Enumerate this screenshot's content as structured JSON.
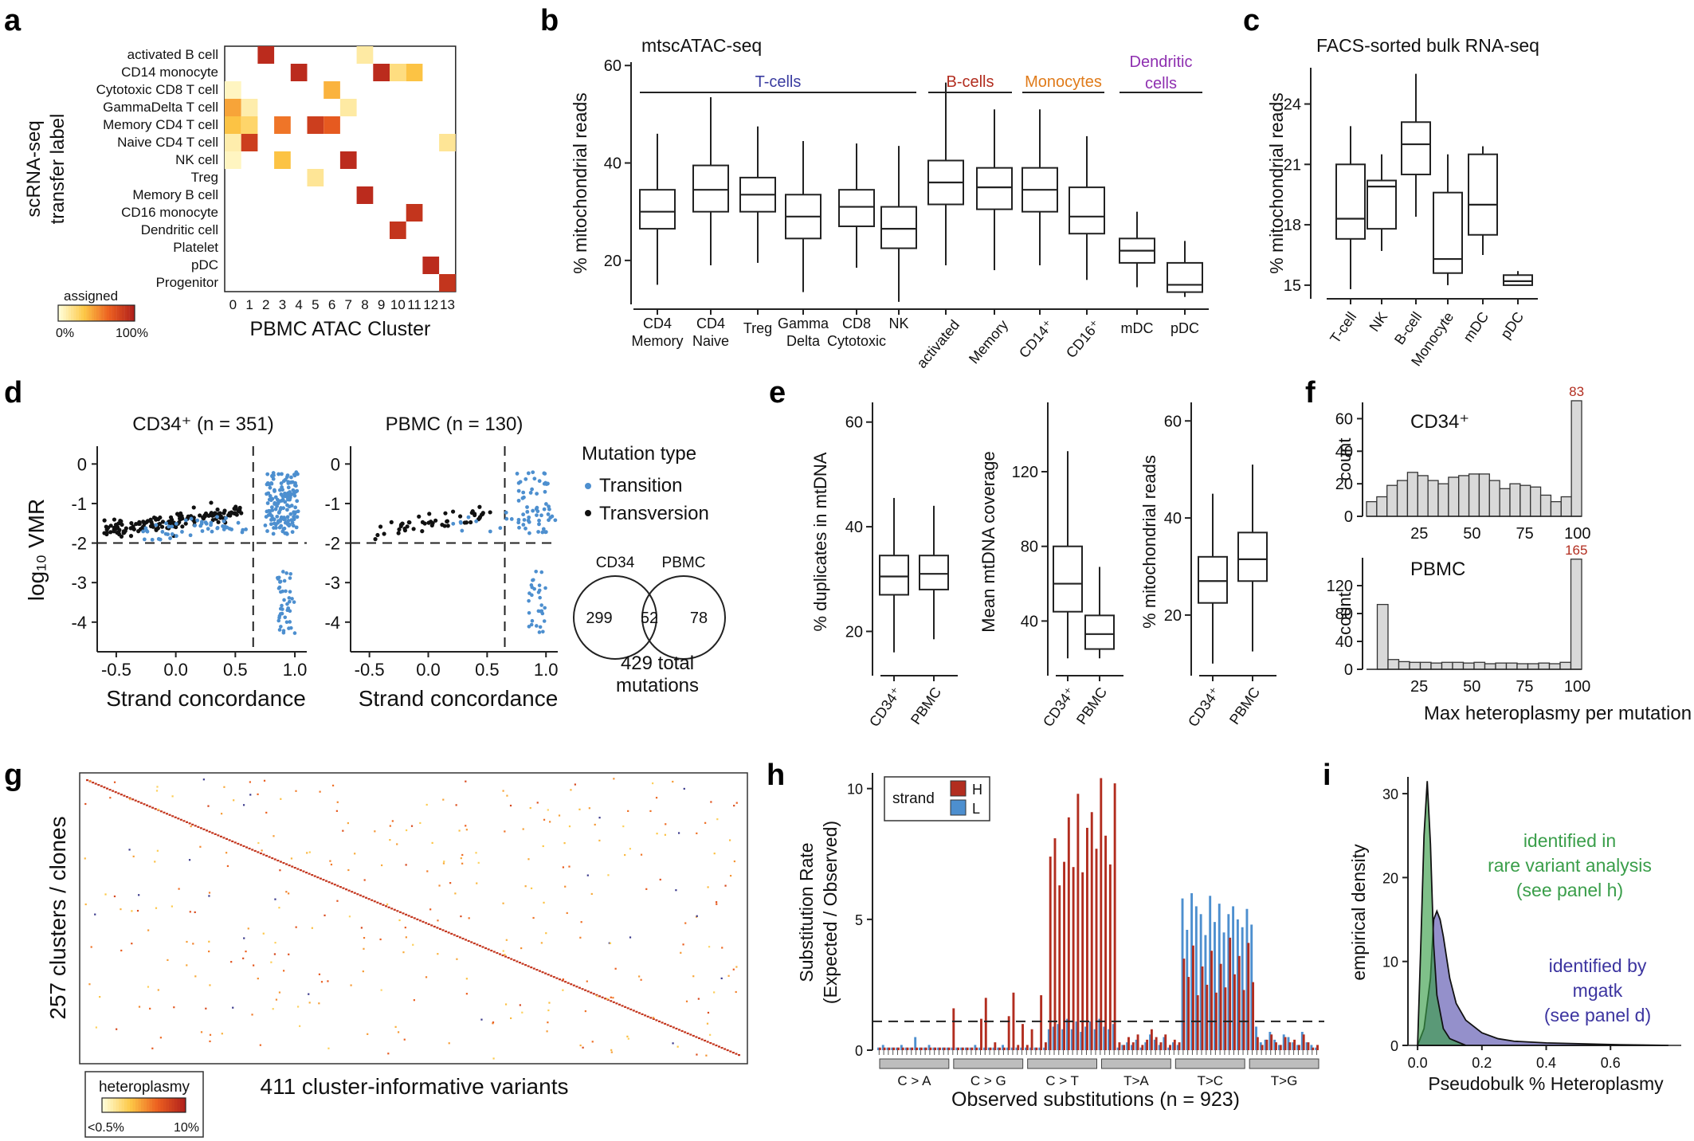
{
  "colors": {
    "red": "#b22d1f",
    "blue": "#4d8fcf",
    "green": "#3a9e4a",
    "purple": "#3d35a0",
    "orange": "#e07b1a",
    "magenta": "#8e2fb0",
    "navy": "#3a3ca0",
    "box_gray": "#d9d9d9"
  },
  "panels": {
    "a": "a",
    "b": "b",
    "c": "c",
    "d": "d",
    "e": "e",
    "f": "f",
    "g": "g",
    "h": "h",
    "i": "i"
  },
  "chart_data": [
    {
      "id": "a",
      "type": "heatmap",
      "ylabel": "scRNA-seq\ntransfer label",
      "xlabel": "PBMC ATAC Cluster",
      "rows": [
        "activated B cell",
        "CD14 monocyte",
        "Cytotoxic CD8 T cell",
        "GammaDelta T cell",
        "Memory CD4 T cell",
        "Naive CD4 T cell",
        "NK cell",
        "Treg",
        "Memory B cell",
        "CD16 monocyte",
        "Dendritic cell",
        "Platelet",
        "pDC",
        "Progenitor"
      ],
      "columns": [
        "0",
        "1",
        "2",
        "3",
        "4",
        "5",
        "6",
        "7",
        "8",
        "9",
        "10",
        "11",
        "12",
        "13"
      ],
      "cells": [
        [
          0,
          2,
          0.95
        ],
        [
          0,
          8,
          0.12
        ],
        [
          1,
          4,
          0.95
        ],
        [
          1,
          9,
          0.95
        ],
        [
          1,
          10,
          0.2
        ],
        [
          1,
          11,
          0.35
        ],
        [
          2,
          0,
          0.05
        ],
        [
          2,
          6,
          0.4
        ],
        [
          3,
          0,
          0.45
        ],
        [
          3,
          1,
          0.1
        ],
        [
          3,
          7,
          0.12
        ],
        [
          4,
          0,
          0.35
        ],
        [
          4,
          1,
          0.25
        ],
        [
          4,
          3,
          0.6
        ],
        [
          4,
          5,
          0.85
        ],
        [
          4,
          6,
          0.7
        ],
        [
          5,
          0,
          0.1
        ],
        [
          5,
          1,
          0.85
        ],
        [
          5,
          13,
          0.15
        ],
        [
          6,
          0,
          0.05
        ],
        [
          6,
          3,
          0.35
        ],
        [
          6,
          7,
          0.95
        ],
        [
          7,
          5,
          0.15
        ],
        [
          8,
          8,
          0.95
        ],
        [
          9,
          11,
          0.9
        ],
        [
          10,
          10,
          0.9
        ],
        [
          12,
          12,
          0.95
        ],
        [
          13,
          13,
          0.9
        ]
      ],
      "legend": {
        "title": "assigned",
        "min_label": "0%",
        "max_label": "100%"
      }
    },
    {
      "id": "b",
      "type": "box",
      "title": "mtscATAC-seq",
      "ylabel": "% mitochondrial reads",
      "yticks": [
        20,
        40,
        60
      ],
      "ylim": [
        10,
        62
      ],
      "groups": [
        {
          "label": "T-cells",
          "from": 0,
          "to": 5,
          "color": "#3a3ca0"
        },
        {
          "label": "B-cells",
          "from": 6,
          "to": 7,
          "color": "#b22d1f"
        },
        {
          "label": "Monocytes",
          "from": 8,
          "to": 9,
          "color": "#e07b1a"
        },
        {
          "label": "Dendritic\ncells",
          "from": 10,
          "to": 11,
          "color": "#8e2fb0"
        }
      ],
      "boxes": [
        {
          "label": "CD4\nMemory",
          "min": 15,
          "q1": 26.5,
          "median": 30,
          "q3": 34.5,
          "max": 46
        },
        {
          "label": "CD4\nNaive",
          "min": 19,
          "q1": 30,
          "median": 34.5,
          "q3": 39.5,
          "max": 53.5
        },
        {
          "label": "Treg",
          "min": 19.5,
          "q1": 30,
          "median": 33.5,
          "q3": 37,
          "max": 47.5
        },
        {
          "label": "Gamma\nDelta",
          "min": 13.5,
          "q1": 24.5,
          "median": 29,
          "q3": 33.5,
          "max": 44.5
        },
        {
          "label": "CD8\nCytotoxic",
          "min": 18.5,
          "q1": 27,
          "median": 31,
          "q3": 34.5,
          "max": 44
        },
        {
          "label": "NK",
          "min": 11.5,
          "q1": 22.5,
          "median": 26.5,
          "q3": 31,
          "max": 43.5
        },
        {
          "label": "activated",
          "min": 19,
          "q1": 31.5,
          "median": 36,
          "q3": 40.5,
          "max": 56.5
        },
        {
          "label": "Memory",
          "min": 18,
          "q1": 30.5,
          "median": 35,
          "q3": 39,
          "max": 51
        },
        {
          "label": "CD14⁺",
          "min": 19,
          "q1": 30,
          "median": 34.5,
          "q3": 39,
          "max": 51
        },
        {
          "label": "CD16⁺",
          "min": 16,
          "q1": 25.5,
          "median": 29,
          "q3": 35,
          "max": 45.5
        },
        {
          "label": "mDC",
          "min": 14.5,
          "q1": 19.5,
          "median": 22,
          "q3": 24.5,
          "max": 30
        },
        {
          "label": "pDC",
          "min": 12.5,
          "q1": 13.5,
          "median": 15,
          "q3": 19.5,
          "max": 24
        }
      ]
    },
    {
      "id": "c",
      "type": "box",
      "title": "FACS-sorted bulk RNA-seq",
      "ylabel": "% mitochondrial reads",
      "yticks": [
        15,
        18,
        21,
        24
      ],
      "ylim": [
        14.6,
        26
      ],
      "boxes": [
        {
          "label": "T-cell",
          "min": 14.8,
          "q1": 17.3,
          "median": 18.3,
          "q3": 21,
          "max": 22.9
        },
        {
          "label": "NK",
          "min": 16.7,
          "q1": 17.8,
          "median": 19.9,
          "q3": 20.2,
          "max": 21.5
        },
        {
          "label": "B-cell",
          "min": 18.4,
          "q1": 20.5,
          "median": 22,
          "q3": 23.1,
          "max": 25.5
        },
        {
          "label": "Monocyte",
          "min": 15,
          "q1": 15.6,
          "median": 16.3,
          "q3": 19.6,
          "max": 21.5
        },
        {
          "label": "mDC",
          "min": 16.5,
          "q1": 17.5,
          "median": 19,
          "q3": 21.5,
          "max": 21.9
        },
        {
          "label": "pDC",
          "min": 15,
          "q1": 15,
          "median": 15.2,
          "q3": 15.5,
          "max": 15.7
        }
      ]
    },
    {
      "id": "d",
      "type": "scatter",
      "ylabel": "log₁₀ VMR",
      "xlabel": "Strand concordance",
      "xticks": [
        "-0.5",
        "0.0",
        "0.5",
        "1.0"
      ],
      "yticks": [
        "0",
        "-1",
        "-2",
        "-3",
        "-4"
      ],
      "xlim": [
        -0.66,
        1.1
      ],
      "ylim": [
        -4.75,
        0.45
      ],
      "threshold_x": 0.65,
      "threshold_y": -2,
      "subpanels": [
        {
          "title": "CD34⁺ (n = 351)",
          "n_transversion": 150,
          "n_transition": 200,
          "n_low": 45
        },
        {
          "title": "PBMC (n = 130)",
          "n_transversion": 50,
          "n_transition": 70,
          "n_low": 30
        }
      ],
      "legend": {
        "title": "Mutation type",
        "items": [
          "Transition",
          "Transversion"
        ]
      },
      "venn": {
        "left_label": "CD34",
        "right_label": "PBMC",
        "left": "299",
        "both": "52",
        "right": "78",
        "caption": "429 total\nmutations"
      }
    },
    {
      "id": "e",
      "type": "box",
      "subplots": [
        {
          "ylabel": "% duplicates in mtDNA",
          "yticks": [
            20,
            40,
            60
          ],
          "ylim": [
            12,
            63
          ],
          "categories": [
            "CD34⁺",
            "PBMC"
          ],
          "boxes": [
            {
              "min": 16,
              "q1": 27,
              "median": 30.5,
              "q3": 34.5,
              "max": 45.5
            },
            {
              "min": 18.5,
              "q1": 28,
              "median": 31,
              "q3": 34.5,
              "max": 44
            }
          ]
        },
        {
          "ylabel": "Mean mtDNA coverage",
          "yticks": [
            40,
            80,
            120
          ],
          "ylim": [
            12,
            155
          ],
          "categories": [
            "CD34⁺",
            "PBMC"
          ],
          "boxes": [
            {
              "min": 20,
              "q1": 45,
              "median": 60,
              "q3": 80,
              "max": 131
            },
            {
              "min": 20,
              "q1": 25,
              "median": 33,
              "q3": 43,
              "max": 69
            }
          ]
        },
        {
          "ylabel": "% mitochondrial reads",
          "yticks": [
            20,
            40,
            60
          ],
          "ylim": [
            8,
            63
          ],
          "categories": [
            "CD34⁺",
            "PBMC"
          ],
          "boxes": [
            {
              "min": 10,
              "q1": 22.5,
              "median": 27,
              "q3": 32,
              "max": 45
            },
            {
              "min": 12.5,
              "q1": 27,
              "median": 31.5,
              "q3": 37,
              "max": 51
            }
          ]
        }
      ]
    },
    {
      "id": "f",
      "type": "bar",
      "xlabel": "Max heteroplasmy per mutation",
      "ylabel": "count",
      "xticks": [
        25,
        50,
        75,
        100
      ],
      "subplots": [
        {
          "title": "CD34⁺",
          "yticks": [
            0,
            20,
            40,
            60
          ],
          "ylim": [
            0,
            70
          ],
          "annotation": "83",
          "values": [
            9,
            12,
            19,
            22,
            27,
            25,
            22,
            20,
            24,
            25,
            26,
            26,
            22,
            17,
            20,
            19,
            18,
            13,
            9,
            12,
            71
          ]
        },
        {
          "title": "PBMC",
          "yticks": [
            0,
            40,
            80,
            120
          ],
          "ylim": [
            0,
            160
          ],
          "annotation": "165",
          "values": [
            0,
            93,
            14,
            11,
            10,
            10,
            9,
            10,
            10,
            9,
            10,
            8,
            9,
            9,
            8,
            8,
            9,
            8,
            10,
            158
          ]
        }
      ]
    },
    {
      "id": "g",
      "type": "heatmap",
      "ylabel": "257 clusters / clones",
      "xlabel": "411 cluster-informative variants",
      "n_rows": 257,
      "n_columns": 411,
      "legend": {
        "title": "heteroplasmy",
        "min_label": "<0.5%",
        "max_label": "10%"
      }
    },
    {
      "id": "h",
      "type": "bar",
      "ylabel": "Substitution Rate\n(Expected / Observed)",
      "xlabel": "Observed substitutions (n = 923)",
      "yticks": [
        0,
        5,
        10
      ],
      "ylim": [
        0,
        10.6
      ],
      "reference_line": 1.1,
      "legend": {
        "title": "strand",
        "items": [
          "H",
          "L"
        ]
      },
      "substitution_groups": [
        "C > A",
        "C > G",
        "C > T",
        "T>A",
        "T>C",
        "T>G"
      ],
      "series": [
        {
          "name": "H",
          "values": [
            0.1,
            0.1,
            0.1,
            0.1,
            0.1,
            0.1,
            0.1,
            0.1,
            0.1,
            0.1,
            0.1,
            0.1,
            0.1,
            0.1,
            0.1,
            0.1,
            1.6,
            0.1,
            0.1,
            0.1,
            0.1,
            0.1,
            1.2,
            2.0,
            0.1,
            0.3,
            0.1,
            0.1,
            1.3,
            2.2,
            0.2,
            1.0,
            0.2,
            0.8,
            0.1,
            2.1,
            0.3,
            7.4,
            8.1,
            6.3,
            7.2,
            8.9,
            7.0,
            9.8,
            6.8,
            8.5,
            9.1,
            7.7,
            10.4,
            8.2,
            7.1,
            10.2,
            0.3,
            0.2,
            0.5,
            0.3,
            0.6,
            0.2,
            0.4,
            0.8,
            0.5,
            0.3,
            0.6,
            0.2,
            0.4,
            0.3,
            3.5,
            2.8,
            4.0,
            2.1,
            3.2,
            2.5,
            3.8,
            2.2,
            3.3,
            2.4,
            4.3,
            2.9,
            3.6,
            2.3,
            4.1,
            2.6,
            0.5,
            0.2,
            0.4,
            0.6,
            0.3,
            0.2,
            0.5,
            0.3,
            0.4,
            0.2,
            0.6,
            0.3,
            0.1,
            0.2
          ]
        },
        {
          "name": "L",
          "values": [
            0.1,
            0.2,
            0.1,
            0.1,
            0.1,
            0.2,
            0.1,
            0.1,
            0.5,
            0.1,
            0.1,
            0.2,
            0.1,
            0.1,
            0.1,
            0.1,
            0.1,
            0.1,
            0.1,
            0.1,
            0.1,
            0.2,
            0.1,
            0.1,
            0.1,
            0.1,
            0.1,
            0.2,
            0.1,
            0.1,
            0.1,
            0.1,
            0.1,
            0.1,
            0.1,
            0.1,
            0.1,
            0.8,
            0.9,
            1.0,
            0.8,
            1.2,
            0.8,
            1.1,
            0.7,
            0.9,
            1.1,
            0.8,
            1.2,
            0.9,
            0.8,
            1.0,
            0.1,
            0.2,
            0.3,
            0.2,
            0.4,
            0.1,
            0.3,
            0.6,
            0.4,
            0.2,
            0.5,
            0.1,
            0.3,
            0.2,
            5.8,
            4.6,
            6.0,
            5.5,
            5.2,
            4.4,
            5.9,
            4.9,
            5.6,
            4.5,
            5.2,
            5.5,
            5.0,
            4.7,
            5.4,
            4.8,
            0.9,
            0.3,
            0.4,
            0.7,
            0.4,
            0.2,
            0.6,
            0.5,
            0.3,
            0.2,
            0.7,
            0.3,
            0.2,
            0.1
          ]
        }
      ]
    },
    {
      "id": "i",
      "type": "area",
      "xlabel": "Pseudobulk % Heteroplasmy",
      "ylabel": "empirical density",
      "xticks": [
        "0.0",
        "0.2",
        "0.4",
        "0.6"
      ],
      "yticks": [
        0,
        10,
        20,
        30
      ],
      "xlim": [
        -0.03,
        0.82
      ],
      "ylim": [
        0,
        32
      ],
      "series": [
        {
          "name": "rare",
          "color": "#3a9e4a",
          "x": [
            0,
            0.01,
            0.02,
            0.03,
            0.04,
            0.05,
            0.06,
            0.08,
            0.1,
            0.15
          ],
          "y": [
            0,
            12,
            25,
            31.5,
            24,
            12,
            6,
            2,
            0.8,
            0
          ]
        },
        {
          "name": "mgatk",
          "color": "#3d35a0",
          "x": [
            0,
            0.02,
            0.04,
            0.05,
            0.06,
            0.07,
            0.08,
            0.1,
            0.12,
            0.15,
            0.2,
            0.25,
            0.3,
            0.4,
            0.5,
            0.6,
            0.7,
            0.78
          ],
          "y": [
            0,
            2,
            8,
            15,
            16,
            15,
            13,
            8,
            5,
            3,
            1.5,
            0.8,
            0.5,
            0.3,
            0.2,
            0.1,
            0.05,
            0
          ]
        }
      ],
      "annotations": [
        {
          "lines": [
            "identified in",
            "rare variant analysis",
            "(see panel h)"
          ],
          "bold": "h",
          "color": "#3a9e4a"
        },
        {
          "lines": [
            "identified by",
            "mgatk",
            "(see panel d)"
          ],
          "bold": "d",
          "color": "#3d35a0"
        }
      ]
    }
  ]
}
